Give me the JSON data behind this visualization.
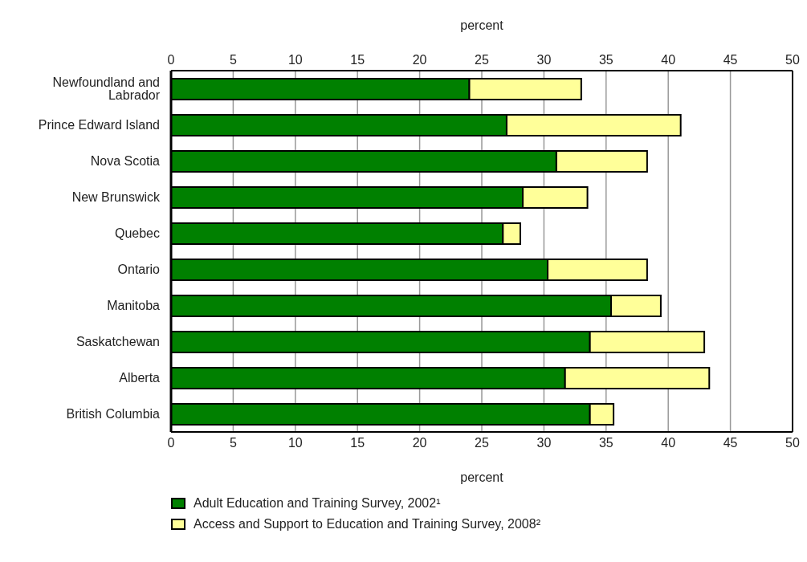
{
  "chart_data": {
    "type": "bar",
    "orientation": "horizontal",
    "stacked": true,
    "xlabel": "percent",
    "x2label": "percent",
    "categories": [
      "Newfoundland and Labrador",
      "Prince Edward Island",
      "Nova Scotia",
      "New Brunswick",
      "Quebec",
      "Ontario",
      "Manitoba",
      "Saskatchewan",
      "Alberta",
      "British Columbia"
    ],
    "series": [
      {
        "name": "Adult Education and Training Survey, 2002¹",
        "color": "#008000",
        "values": [
          24.0,
          27.0,
          31.0,
          28.3,
          26.7,
          30.3,
          35.4,
          33.7,
          31.7,
          33.7
        ]
      },
      {
        "name": "Access and Support to Education and Training Survey, 2008²",
        "color": "#ffff99",
        "values": [
          9.0,
          14.0,
          7.3,
          5.2,
          1.4,
          8.0,
          4.0,
          9.2,
          11.6,
          1.9
        ]
      }
    ],
    "xlim": [
      0,
      50
    ],
    "xticks": [
      0,
      5,
      10,
      15,
      20,
      25,
      30,
      35,
      40,
      45,
      50
    ],
    "x2lim": [
      0,
      50
    ],
    "x2ticks": [
      0,
      5,
      10,
      15,
      20,
      25,
      30,
      35,
      40,
      45,
      50
    ],
    "grid": "x",
    "legend": "bottom"
  }
}
